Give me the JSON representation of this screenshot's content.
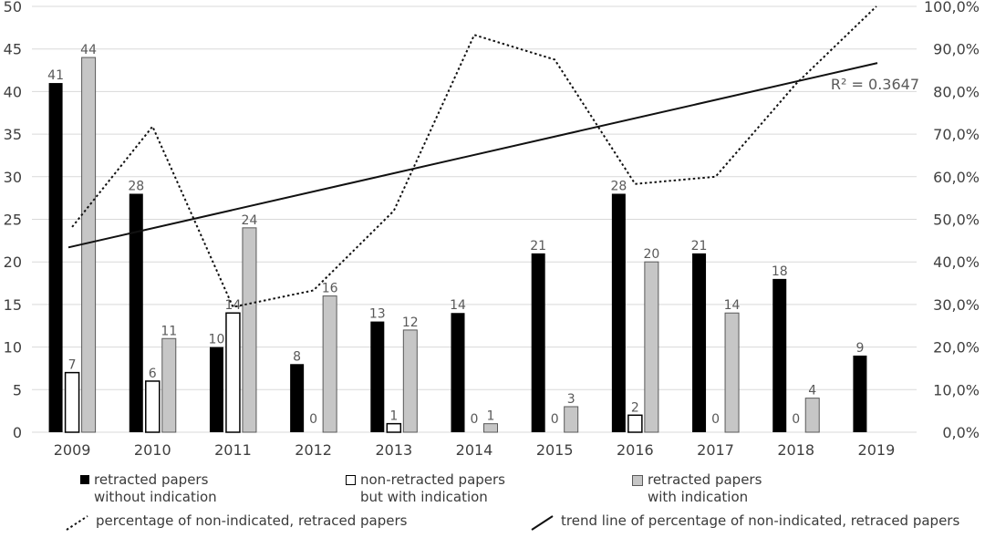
{
  "chart_data": {
    "type": "bar",
    "subtype": "combo-bar-line-dual-axis",
    "title": "",
    "categories": [
      "2009",
      "2010",
      "2011",
      "2012",
      "2013",
      "2014",
      "2015",
      "2016",
      "2017",
      "2018",
      "2019"
    ],
    "series": [
      {
        "name": "retracted papers without indication",
        "kind": "bar",
        "style": "black",
        "values": [
          41,
          28,
          10,
          8,
          13,
          14,
          21,
          28,
          21,
          18,
          9
        ]
      },
      {
        "name": "non-retracted papers but with indication",
        "kind": "bar",
        "style": "white",
        "values": [
          7,
          6,
          14,
          0,
          1,
          0,
          0,
          2,
          0,
          0,
          null
        ]
      },
      {
        "name": "retracted papers with indication",
        "kind": "bar",
        "style": "gray",
        "values": [
          44,
          11,
          24,
          16,
          12,
          1,
          3,
          20,
          14,
          4,
          null
        ]
      },
      {
        "name": "percentage of non-indicated, retraced papers",
        "kind": "line",
        "style": "dotted",
        "axis": "right",
        "values_pct": [
          48.2,
          71.8,
          29.4,
          33.3,
          52.0,
          93.3,
          87.5,
          58.3,
          60.0,
          81.8,
          100.0
        ]
      },
      {
        "name": "trend line of percentage of non-indicated, retraced papers",
        "kind": "trendline",
        "style": "solid",
        "axis": "right",
        "start_pct": 43.4,
        "end_pct": 86.7
      }
    ],
    "left_axis": {
      "min": 0,
      "max": 50,
      "step": 5,
      "tick_labels": [
        "0",
        "5",
        "10",
        "15",
        "20",
        "25",
        "30",
        "35",
        "40",
        "45",
        "50"
      ]
    },
    "right_axis": {
      "min": 0,
      "max": 100,
      "step": 10,
      "tick_labels": [
        "0,0%",
        "10,0%",
        "20,0%",
        "30,0%",
        "40,0%",
        "50,0%",
        "60,0%",
        "70,0%",
        "80,0%",
        "90,0%",
        "100,0%"
      ]
    },
    "annotations": {
      "r2_label": "R² = 0.3647"
    },
    "grid": true,
    "legend_position": "bottom"
  },
  "legend": {
    "items": [
      {
        "marker": "black-square",
        "line1": "retracted papers",
        "line2": "without indication"
      },
      {
        "marker": "white-square",
        "line1": "non-retracted papers",
        "line2": "but with indication"
      },
      {
        "marker": "gray-square",
        "line1": "retracted papers",
        "line2": "with indication"
      },
      {
        "marker": "dotted-line",
        "line1": "percentage of non-indicated, retraced papers"
      },
      {
        "marker": "solid-line",
        "line1": "trend line of percentage of non-indicated, retraced papers"
      }
    ]
  },
  "colors": {
    "bar_black": "#000000",
    "bar_white_fill": "#ffffff",
    "bar_white_border": "#000000",
    "bar_gray_fill": "#c6c6c6",
    "bar_gray_border": "#595959",
    "gridline": "#d9d9d9",
    "line_stroke": "#111111",
    "axis_text": "#404040",
    "value_label_text": "#595959"
  }
}
